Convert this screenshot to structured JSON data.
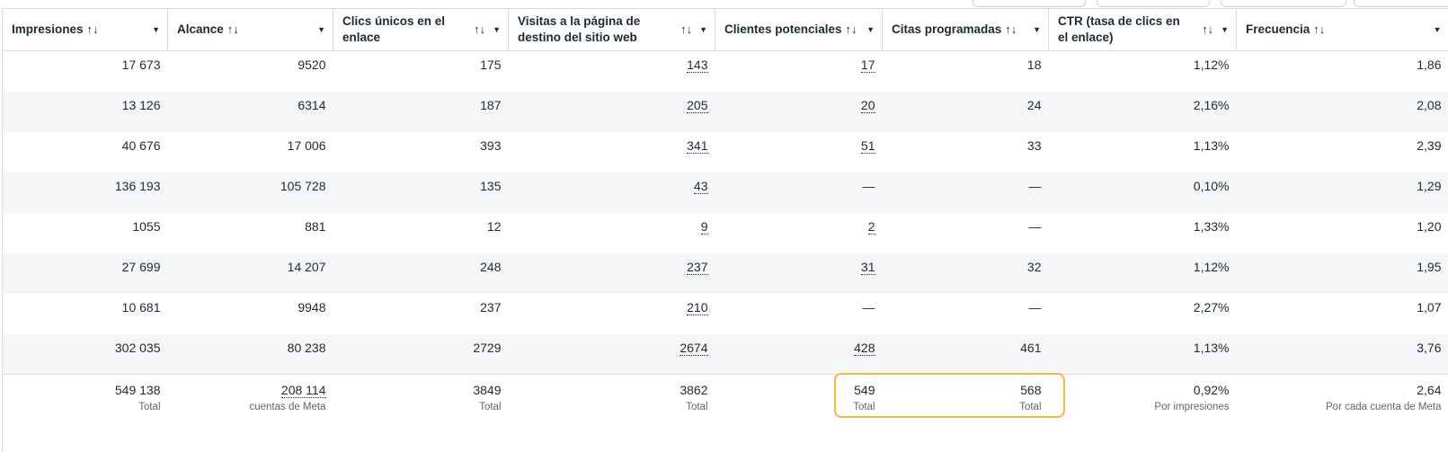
{
  "columns": [
    {
      "label": "Impresiones",
      "sort_icon": "sort-arrows-icon",
      "menu_icon": "caret-down-icon"
    },
    {
      "label": "Alcance",
      "sort_icon": "sort-arrows-icon",
      "menu_icon": "caret-down-icon"
    },
    {
      "label": "Clics únicos en el enlace",
      "sort_icon": "sort-arrows-icon",
      "menu_icon": "caret-down-icon"
    },
    {
      "label": "Visitas a la página de destino del sitio web",
      "sort_icon": "sort-arrows-icon",
      "menu_icon": "caret-down-icon"
    },
    {
      "label": "Clientes potenciales",
      "sort_icon": "sort-arrows-icon",
      "menu_icon": "caret-down-icon"
    },
    {
      "label": "Citas programadas",
      "sort_icon": "sort-arrows-icon",
      "menu_icon": "caret-down-icon"
    },
    {
      "label": "CTR (tasa de clics en el enlace)",
      "sort_icon": "sort-arrows-icon",
      "menu_icon": "caret-down-icon"
    },
    {
      "label": "Frecuencia",
      "sort_icon": "sort-arrows-icon",
      "menu_icon": "caret-down-icon"
    }
  ],
  "rows": [
    [
      "17 673",
      "9520",
      "175",
      "143",
      "17",
      "18",
      "1,12%",
      "1,86"
    ],
    [
      "13 126",
      "6314",
      "187",
      "205",
      "20",
      "24",
      "2,16%",
      "2,08"
    ],
    [
      "40 676",
      "17 006",
      "393",
      "341",
      "51",
      "33",
      "1,13%",
      "2,39"
    ],
    [
      "136 193",
      "105 728",
      "135",
      "43",
      "—",
      "—",
      "0,10%",
      "1,29"
    ],
    [
      "1055",
      "881",
      "12",
      "9",
      "2",
      "—",
      "1,33%",
      "1,20"
    ],
    [
      "27 699",
      "14 207",
      "248",
      "237",
      "31",
      "32",
      "1,12%",
      "1,95"
    ],
    [
      "10 681",
      "9948",
      "237",
      "210",
      "—",
      "—",
      "2,27%",
      "1,07"
    ],
    [
      "302 035",
      "80 238",
      "2729",
      "2674",
      "428",
      "461",
      "1,13%",
      "3,76"
    ]
  ],
  "totals": [
    {
      "value": "549 138",
      "label": "Total"
    },
    {
      "value": "208 114",
      "label": "cuentas de Meta"
    },
    {
      "value": "3849",
      "label": "Total"
    },
    {
      "value": "3862",
      "label": "Total"
    },
    {
      "value": "549",
      "label": "Total"
    },
    {
      "value": "568",
      "label": "Total"
    },
    {
      "value": "0,92%",
      "label": "Por impresiones"
    },
    {
      "value": "2,64",
      "label": "Por cada cuenta de Meta"
    }
  ],
  "highlight_color": "#f7b840",
  "icons": {
    "sort": "↑↓",
    "caret": "▼"
  }
}
